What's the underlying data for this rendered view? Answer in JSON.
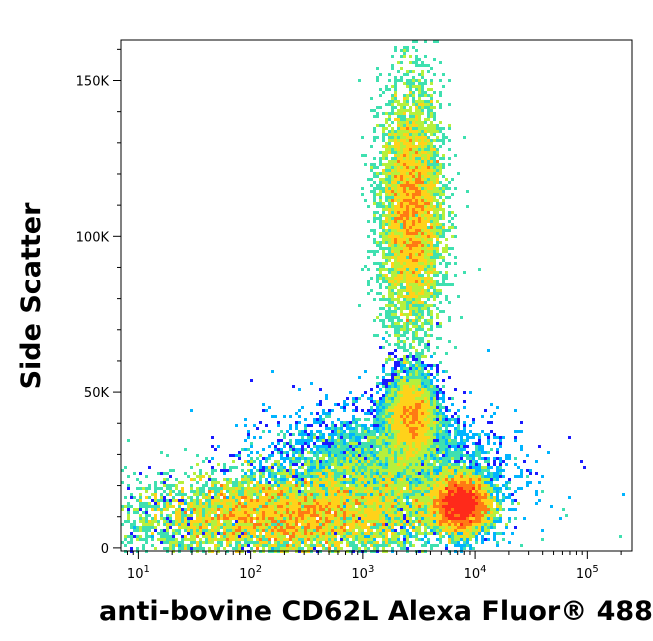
{
  "chart_data": {
    "type": "scatter",
    "title": "",
    "xlabel": "anti-bovine CD62L Alexa Fluor® 488",
    "ylabel": "Side Scatter",
    "x_scale": "log",
    "xlim": [
      7,
      250000
    ],
    "ylim": [
      -1000,
      163000
    ],
    "x_ticks": [
      {
        "value": 10,
        "base": "10",
        "exp": "1"
      },
      {
        "value": 100,
        "base": "10",
        "exp": "2"
      },
      {
        "value": 1000,
        "base": "10",
        "exp": "3"
      },
      {
        "value": 10000,
        "base": "10",
        "exp": "4"
      },
      {
        "value": 100000,
        "base": "10",
        "exp": "5"
      }
    ],
    "y_ticks": [
      {
        "value": 0,
        "label": "0"
      },
      {
        "value": 50000,
        "label": "50K"
      },
      {
        "value": 100000,
        "label": "100K"
      },
      {
        "value": 150000,
        "label": "150K"
      }
    ],
    "grid": false,
    "legend": "none",
    "colormap": [
      "#1a1aff",
      "#00b4ff",
      "#3fe0b0",
      "#b6f03c",
      "#ffd21a",
      "#ff7a14",
      "#ff2a1a"
    ],
    "populations": [
      {
        "name": "",
        "x_center": 200,
        "y_center": 10000,
        "x_spread_decades": 0.7,
        "y_spread": 7000,
        "weight": 0.38
      },
      {
        "name": "",
        "x_center": 7500,
        "y_center": 14000,
        "x_spread_decades": 0.13,
        "y_spread": 4500,
        "weight": 0.18
      },
      {
        "name": "",
        "x_center": 2700,
        "y_center": 42000,
        "x_spread_decades": 0.12,
        "y_spread": 7000,
        "weight": 0.08
      },
      {
        "name": "",
        "x_center": 2700,
        "y_center": 108000,
        "x_spread_decades": 0.14,
        "y_spread": 20000,
        "weight": 0.26
      },
      {
        "name": "",
        "x_center": 1500,
        "y_center": 25000,
        "x_spread_decades": 0.5,
        "y_spread": 9000,
        "weight": 0.1
      }
    ]
  }
}
